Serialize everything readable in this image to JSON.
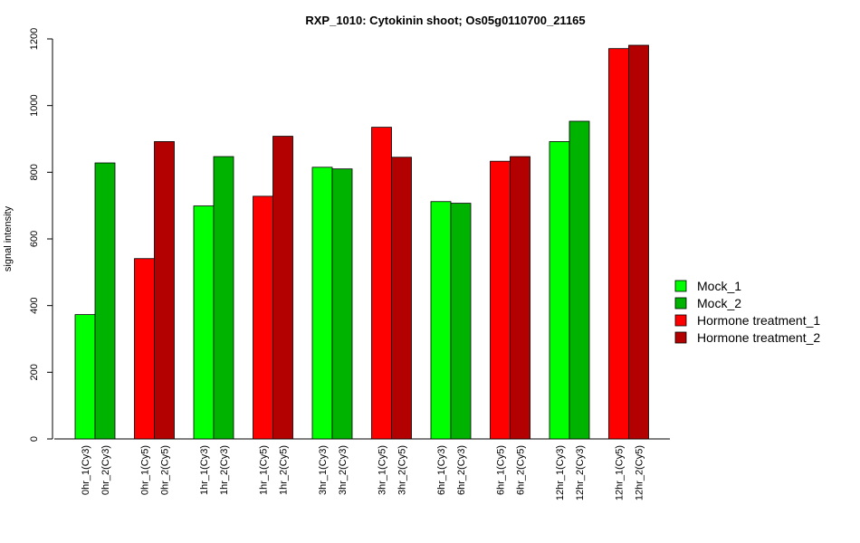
{
  "chart_data": {
    "type": "bar",
    "title": "RXP_1010: Cytokinin shoot; Os05g0110700_21165",
    "xlabel": "",
    "ylabel": "signal intensity",
    "ylim": [
      0,
      1200
    ],
    "yticks": [
      0,
      200,
      400,
      600,
      800,
      1000,
      1200
    ],
    "grid": false,
    "legend_position": "right",
    "series": [
      {
        "name": "Mock_1",
        "color": "#00ff00"
      },
      {
        "name": "Mock_2",
        "color": "#00b300"
      },
      {
        "name": "Hormone treatment_1",
        "color": "#ff0000"
      },
      {
        "name": "Hormone treatment_2",
        "color": "#b30000"
      }
    ],
    "groups": [
      {
        "bars": [
          {
            "label": "0hr_1(Cy3)",
            "value": 373,
            "series": "Mock_1"
          },
          {
            "label": "0hr_2(Cy3)",
            "value": 828,
            "series": "Mock_2"
          }
        ]
      },
      {
        "bars": [
          {
            "label": "0hr_1(Cy5)",
            "value": 541,
            "series": "Hormone treatment_1"
          },
          {
            "label": "0hr_2(Cy5)",
            "value": 892,
            "series": "Hormone treatment_2"
          }
        ]
      },
      {
        "bars": [
          {
            "label": "1hr_1(Cy3)",
            "value": 699,
            "series": "Mock_1"
          },
          {
            "label": "1hr_2(Cy3)",
            "value": 847,
            "series": "Mock_2"
          }
        ]
      },
      {
        "bars": [
          {
            "label": "1hr_1(Cy5)",
            "value": 728,
            "series": "Hormone treatment_1"
          },
          {
            "label": "1hr_2(Cy5)",
            "value": 908,
            "series": "Hormone treatment_2"
          }
        ]
      },
      {
        "bars": [
          {
            "label": "3hr_1(Cy3)",
            "value": 815,
            "series": "Mock_1"
          },
          {
            "label": "3hr_2(Cy3)",
            "value": 810,
            "series": "Mock_2"
          }
        ]
      },
      {
        "bars": [
          {
            "label": "3hr_1(Cy5)",
            "value": 935,
            "series": "Hormone treatment_1"
          },
          {
            "label": "3hr_2(Cy5)",
            "value": 845,
            "series": "Hormone treatment_2"
          }
        ]
      },
      {
        "bars": [
          {
            "label": "6hr_1(Cy3)",
            "value": 712,
            "series": "Mock_1"
          },
          {
            "label": "6hr_2(Cy3)",
            "value": 707,
            "series": "Mock_2"
          }
        ]
      },
      {
        "bars": [
          {
            "label": "6hr_1(Cy5)",
            "value": 833,
            "series": "Hormone treatment_1"
          },
          {
            "label": "6hr_2(Cy5)",
            "value": 847,
            "series": "Hormone treatment_2"
          }
        ]
      },
      {
        "bars": [
          {
            "label": "12hr_1(Cy3)",
            "value": 892,
            "series": "Mock_1"
          },
          {
            "label": "12hr_2(Cy3)",
            "value": 953,
            "series": "Mock_2"
          }
        ]
      },
      {
        "bars": [
          {
            "label": "12hr_1(Cy5)",
            "value": 1171,
            "series": "Hormone treatment_1"
          },
          {
            "label": "12hr_2(Cy5)",
            "value": 1181,
            "series": "Hormone treatment_2"
          }
        ]
      }
    ]
  }
}
